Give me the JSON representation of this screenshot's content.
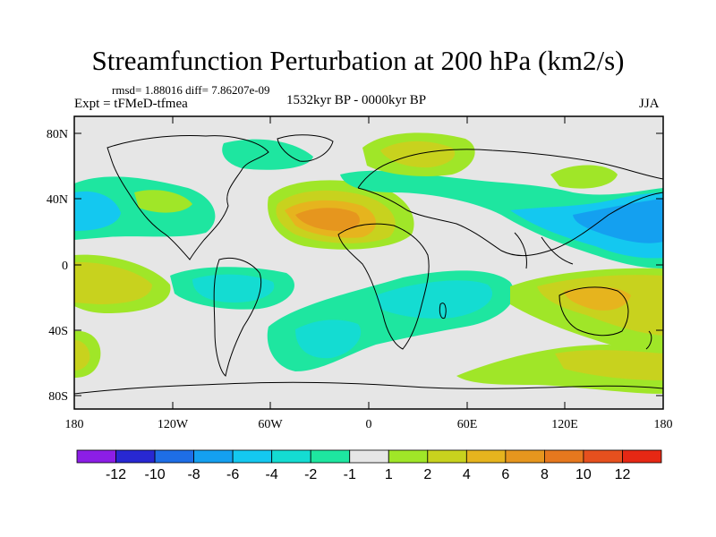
{
  "title": "Streamfunction Perturbation at 200 hPa (km2/s)",
  "stats": "rmsd= 1.88016 diff= 7.86207e-09",
  "experiment": "Expt = tFMeD-tfmea",
  "period": "1532kyr BP - 0000kyr BP",
  "season": "JJA",
  "y_ticks": [
    "80N",
    "40N",
    "0",
    "40S",
    "80S"
  ],
  "x_ticks": [
    "180",
    "120W",
    "60W",
    "0",
    "60E",
    "120E",
    "180"
  ],
  "colorbar": {
    "colors": [
      "#8c1ee6",
      "#2828d2",
      "#1e6ee6",
      "#14a0f0",
      "#14c8f0",
      "#14dcd2",
      "#1ee6a0",
      "#e6e6e6",
      "#a0e628",
      "#c8d21e",
      "#e6b41e",
      "#e6961e",
      "#e6781e",
      "#e6501e",
      "#e62814"
    ],
    "labels": [
      "-12",
      "-10",
      "-8",
      "-6",
      "-4",
      "-2",
      "-1",
      "1",
      "2",
      "4",
      "6",
      "8",
      "10",
      "12"
    ]
  }
}
